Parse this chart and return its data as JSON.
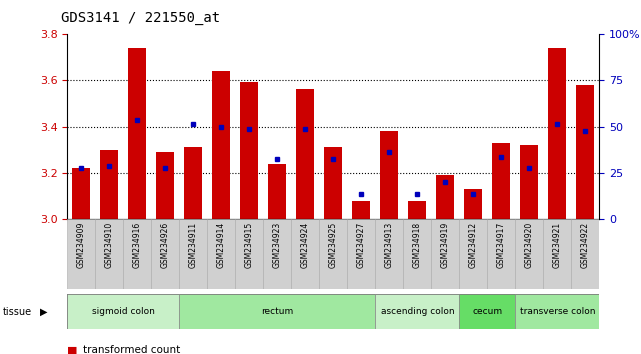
{
  "title": "GDS3141 / 221550_at",
  "samples": [
    "GSM234909",
    "GSM234910",
    "GSM234916",
    "GSM234926",
    "GSM234911",
    "GSM234914",
    "GSM234915",
    "GSM234923",
    "GSM234924",
    "GSM234925",
    "GSM234927",
    "GSM234913",
    "GSM234918",
    "GSM234919",
    "GSM234912",
    "GSM234917",
    "GSM234920",
    "GSM234921",
    "GSM234922"
  ],
  "red_values": [
    3.22,
    3.3,
    3.74,
    3.29,
    3.31,
    3.64,
    3.59,
    3.24,
    3.56,
    3.31,
    3.08,
    3.38,
    3.08,
    3.19,
    3.13,
    3.33,
    3.32,
    3.74,
    3.58
  ],
  "blue_values": [
    3.22,
    3.23,
    3.43,
    3.22,
    3.41,
    3.4,
    3.39,
    3.26,
    3.39,
    3.26,
    3.11,
    3.29,
    3.11,
    3.16,
    3.11,
    3.27,
    3.22,
    3.41,
    3.38
  ],
  "y_min": 3.0,
  "y_max": 3.8,
  "y_ticks_left": [
    3.0,
    3.2,
    3.4,
    3.6,
    3.8
  ],
  "y_ticks_right": [
    0,
    25,
    50,
    75,
    100
  ],
  "tissue_groups": [
    {
      "label": "sigmoid colon",
      "start": 0,
      "end": 4,
      "color": "#c8f0c8"
    },
    {
      "label": "rectum",
      "start": 4,
      "end": 11,
      "color": "#a0e8a0"
    },
    {
      "label": "ascending colon",
      "start": 11,
      "end": 14,
      "color": "#c8f0c8"
    },
    {
      "label": "cecum",
      "start": 14,
      "end": 16,
      "color": "#66dd66"
    },
    {
      "label": "transverse colon",
      "start": 16,
      "end": 19,
      "color": "#a0e8a0"
    }
  ],
  "bar_color": "#cc0000",
  "blue_color": "#0000bb",
  "bg_color": "#ffffff",
  "plot_bg_color": "#ffffff",
  "label_color_left": "#cc0000",
  "label_color_right": "#0000bb",
  "tick_bg_color": "#d0d0d0"
}
